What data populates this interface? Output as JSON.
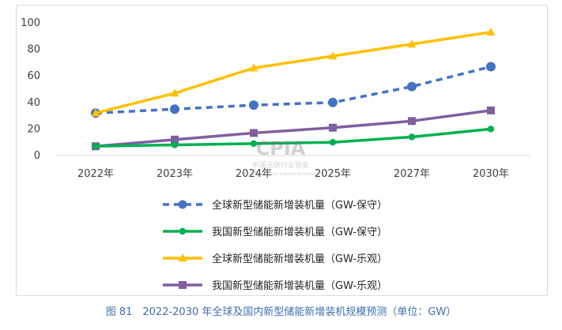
{
  "chart_data": {
    "type": "line",
    "title": "",
    "xlabel": "",
    "ylabel": "",
    "categories": [
      "2022年",
      "2023年",
      "2024年",
      "2025年",
      "2027年",
      "2030年"
    ],
    "ylim": [
      0,
      100
    ],
    "yticks": [
      0,
      20,
      40,
      60,
      80,
      100
    ],
    "grid": false,
    "legend_position": "bottom",
    "series": [
      {
        "name": "全球新型储能新增装机量（GW-保守）",
        "values": [
          32,
          35,
          38,
          40,
          52,
          67
        ],
        "color": "#4472c4",
        "marker": "circle",
        "dashed": true
      },
      {
        "name": "我国新型储能新增装机量（GW-保守）",
        "values": [
          7,
          8,
          9,
          10,
          14,
          20
        ],
        "color": "#00b050",
        "marker": "circle",
        "dashed": false
      },
      {
        "name": "全球新型储能新增装机量（GW-乐观）",
        "values": [
          32,
          47,
          66,
          75,
          84,
          93
        ],
        "color": "#ffc000",
        "marker": "triangle",
        "dashed": false
      },
      {
        "name": "我国新型储能新增装机量（GW-乐观）",
        "values": [
          7,
          12,
          17,
          21,
          26,
          34
        ],
        "color": "#7f5f9f",
        "marker": "square",
        "dashed": false
      }
    ]
  },
  "caption": "图 81　2022-2030 年全球及国内新型储能新增装机规模预测（单位：GW）",
  "watermark": {
    "logo_text": "CPIA",
    "org_name": "中国光伏行业协会",
    "org_name_en": "China Photovoltaic Industry Association"
  }
}
